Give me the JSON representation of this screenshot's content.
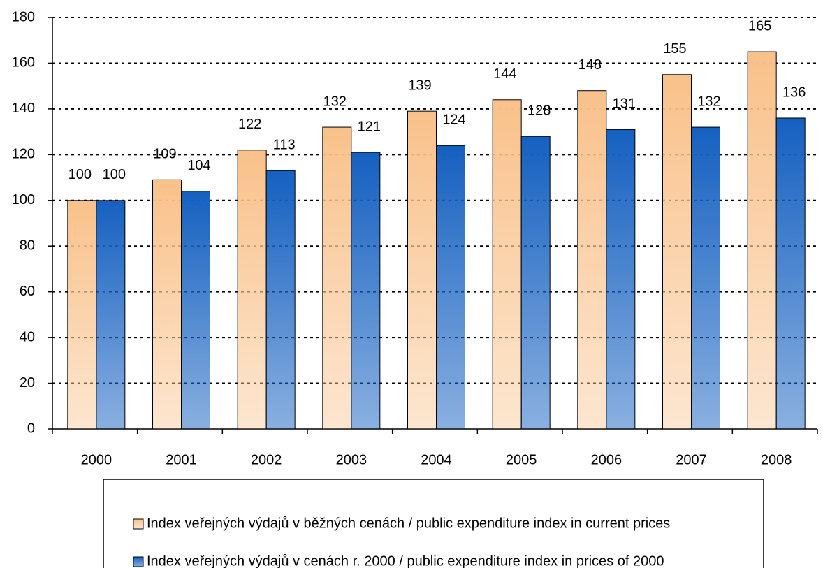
{
  "chart_data": {
    "type": "bar",
    "categories": [
      "2000",
      "2001",
      "2002",
      "2003",
      "2004",
      "2005",
      "2006",
      "2007",
      "2008"
    ],
    "series": [
      {
        "name": "Index veřejných výdajů v běžných cenách / public expenditure index in current prices",
        "color": "#f9c18a",
        "values": [
          100,
          109,
          122,
          132,
          139,
          144,
          148,
          155,
          165
        ]
      },
      {
        "name": "Index veřejných výdajů v cenách r. 2000 / public expenditure index in prices of 2000",
        "color": "#1560c0",
        "values": [
          100,
          104,
          113,
          121,
          124,
          128,
          131,
          132,
          136
        ]
      }
    ],
    "ylim": [
      0,
      180
    ],
    "yticks": [
      0,
      20,
      40,
      60,
      80,
      100,
      120,
      140,
      160,
      180
    ],
    "grid": true,
    "legend": "bottom"
  }
}
